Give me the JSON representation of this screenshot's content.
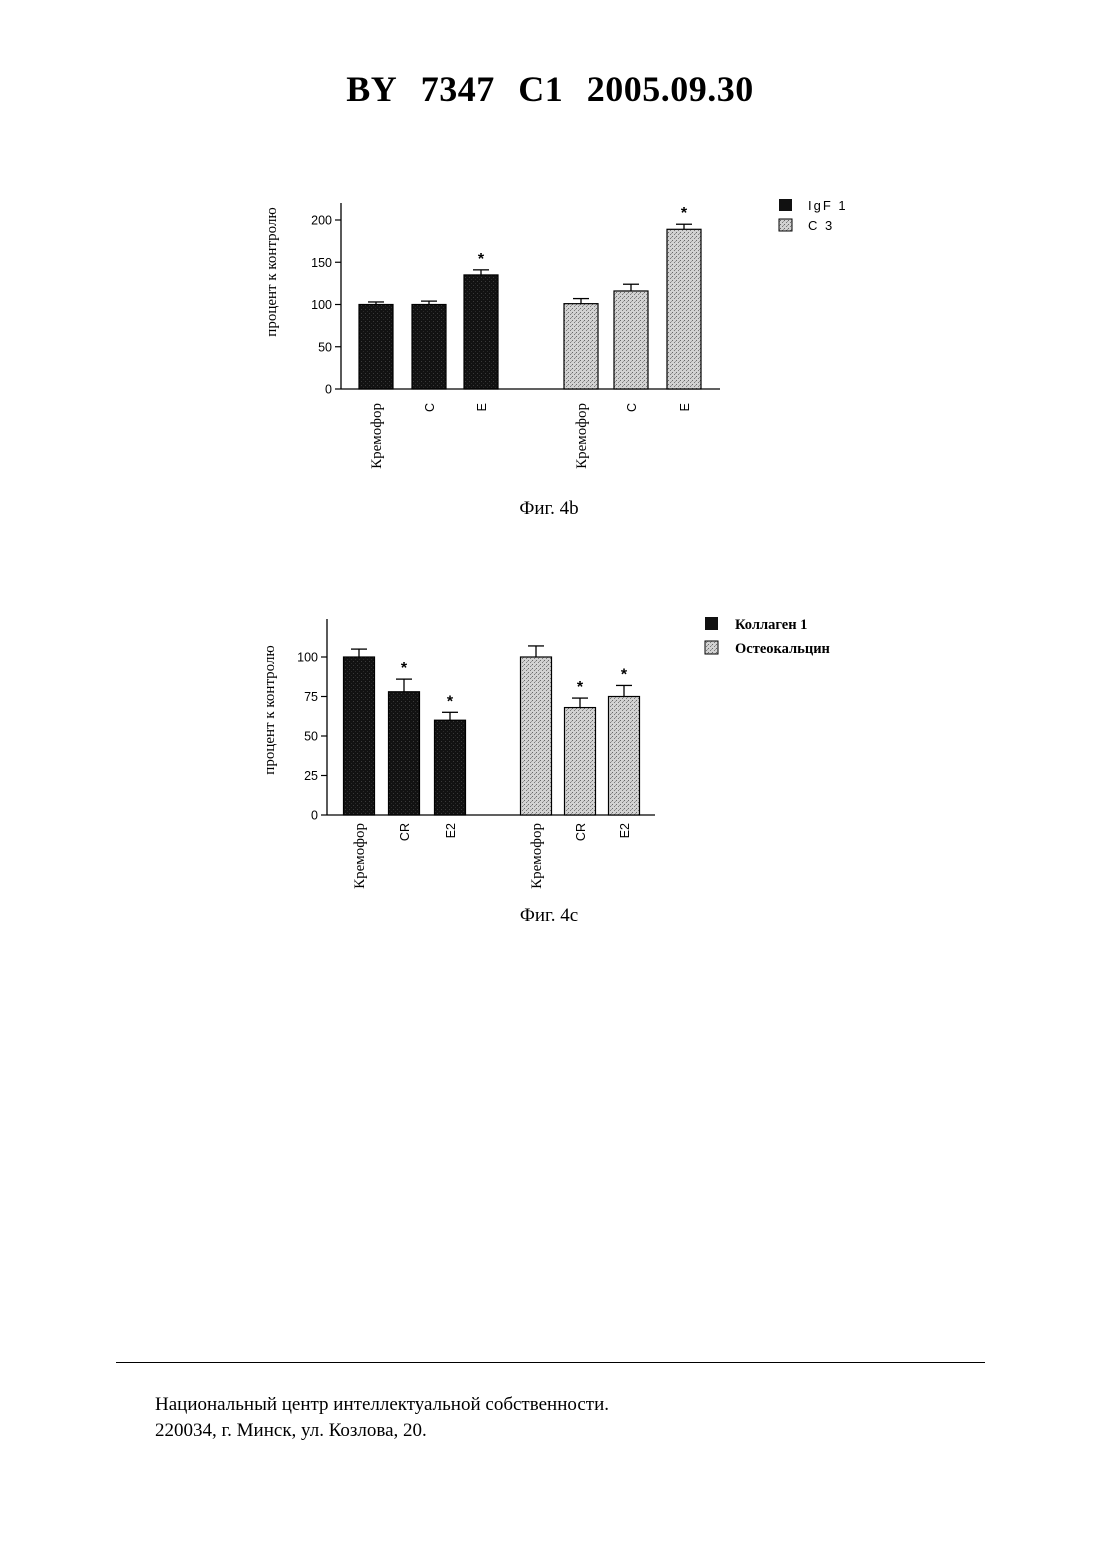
{
  "header": {
    "country": "BY",
    "number": "7347",
    "kind": "C1",
    "date": "2005.09.30"
  },
  "figures": [
    {
      "caption": "Фиг. 4b"
    },
    {
      "caption": "Фиг. 4c"
    }
  ],
  "footer": {
    "line1": "Национальный центр интеллектуальной собственности.",
    "line2": "220034, г. Минск, ул. Козлова, 20."
  },
  "colors": {
    "series_dark": "#141414",
    "series_light": "#cdcdcd"
  },
  "chart_data": [
    {
      "type": "bar",
      "ylabel": "процент к контролю",
      "ylim": [
        0,
        220
      ],
      "yticks": [
        0,
        50,
        100,
        150,
        200
      ],
      "legend_position": "top-right",
      "groups": [
        {
          "series": "IgF 1",
          "categories": [
            "Кремофор",
            "С",
            "Е"
          ],
          "values": [
            100,
            100,
            135
          ],
          "errors": [
            3,
            4,
            6
          ],
          "significant": [
            "",
            "",
            "*"
          ]
        },
        {
          "series": "С 3",
          "categories": [
            "Кремофор",
            "С",
            "Е"
          ],
          "values": [
            101,
            116,
            189
          ],
          "errors": [
            6,
            8,
            6
          ],
          "significant": [
            "",
            "",
            "*"
          ]
        }
      ],
      "series": [
        {
          "name": "IgF 1",
          "color": "#141414"
        },
        {
          "name": "С 3",
          "color": "#cdcdcd"
        }
      ]
    },
    {
      "type": "bar",
      "ylabel": "процент к контролю",
      "ylim": [
        0,
        125
      ],
      "yticks": [
        0,
        25,
        50,
        75,
        100
      ],
      "legend_position": "top-right",
      "groups": [
        {
          "series": "Коллаген 1",
          "categories": [
            "Кремофор",
            "CR",
            "E2"
          ],
          "values": [
            100,
            78,
            60
          ],
          "errors": [
            5,
            8,
            5
          ],
          "significant": [
            "",
            "*",
            "*"
          ]
        },
        {
          "series": "Остеокальцин",
          "categories": [
            "Кремофор",
            "CR",
            "E2"
          ],
          "values": [
            100,
            68,
            75
          ],
          "errors": [
            7,
            6,
            7
          ],
          "significant": [
            "",
            "*",
            "*"
          ]
        }
      ],
      "series": [
        {
          "name": "Коллаген 1",
          "color": "#141414"
        },
        {
          "name": "Остеокальцин",
          "color": "#cdcdcd"
        }
      ]
    }
  ]
}
